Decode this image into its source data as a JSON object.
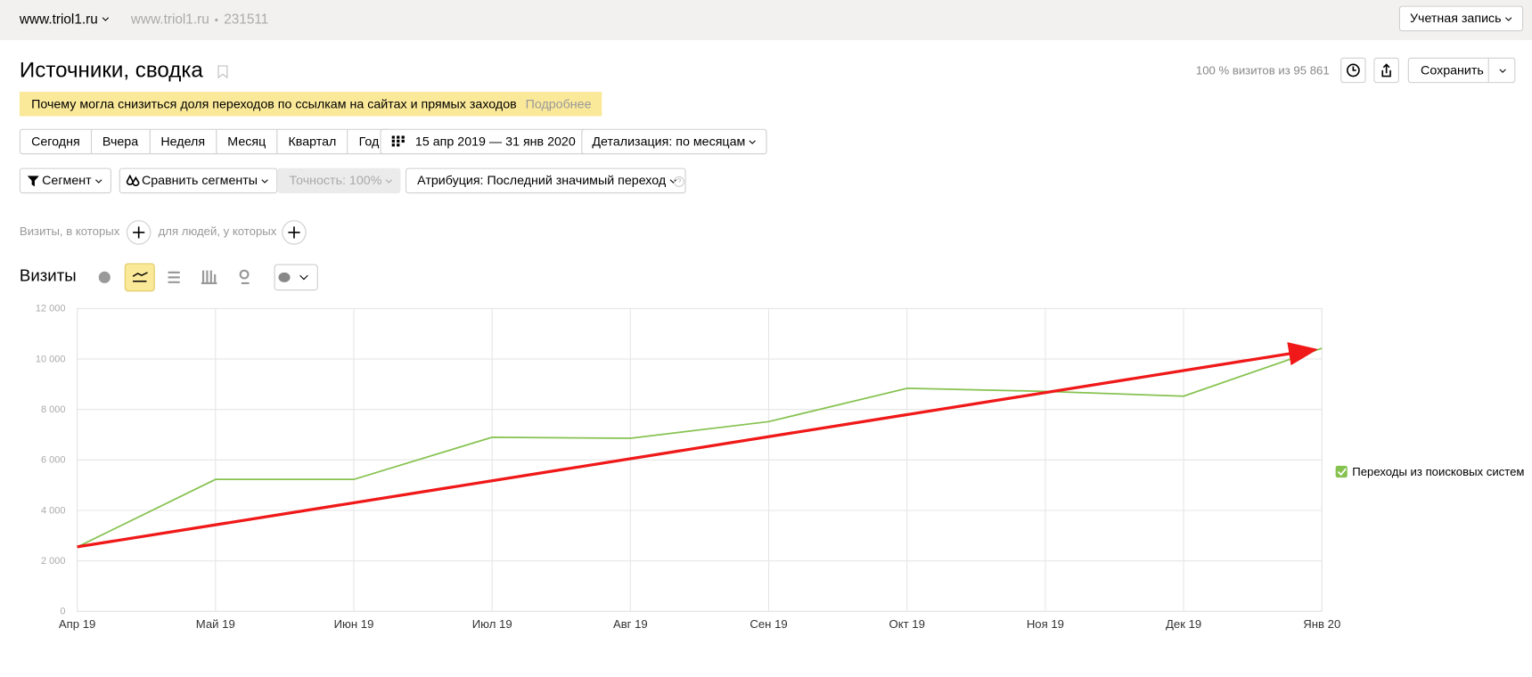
{
  "header": {
    "site": "www.triol1.ru",
    "counter_site": "www.triol1.ru",
    "counter_id": "231511",
    "account": "Учетная запись"
  },
  "report": {
    "title": "Источники, сводка",
    "visits_share": "100 % визитов из 95 861",
    "save": "Сохранить"
  },
  "notice": {
    "text": "Почему могла снизиться доля переходов по ссылкам на сайтах и прямых заходов",
    "link": "Подробнее"
  },
  "periods": [
    "Сегодня",
    "Вчера",
    "Неделя",
    "Месяц",
    "Квартал",
    "Год"
  ],
  "date_range": "15 апр 2019 — 31 янв 2020",
  "detail": "Детализация: по месяцам",
  "filters": {
    "segment": "Сегмент",
    "compare": "Сравнить сегменты",
    "accuracy": "Точность: 100%",
    "attribution": "Атрибуция: Последний значимый переход"
  },
  "conditions": {
    "visits": "Визиты, в которых",
    "people": "для людей, у которых"
  },
  "section": "Визиты",
  "chart_data": {
    "type": "line",
    "categories": [
      "Апр 19",
      "Май 19",
      "Июн 19",
      "Июл 19",
      "Авг 19",
      "Сен 19",
      "Окт 19",
      "Ноя 19",
      "Дек 19",
      "Янв 20"
    ],
    "series": [
      {
        "name": "Переходы из поисковых систем",
        "color": "#86c250",
        "values": [
          2550,
          5230,
          5230,
          6900,
          6860,
          7520,
          8840,
          8720,
          8530,
          10430
        ]
      }
    ],
    "ylim": [
      0,
      12000
    ],
    "yticks": [
      0,
      {
        "value": 2000,
        "label": "2 000"
      },
      {
        "value": 4000,
        "label": "4 000"
      },
      {
        "value": 6000,
        "label": "6 000"
      },
      {
        "value": 8000,
        "label": "8 000"
      },
      {
        "value": 10000,
        "label": "10 000"
      },
      {
        "value": 12000,
        "label": "12 000"
      }
    ],
    "grid": true
  }
}
